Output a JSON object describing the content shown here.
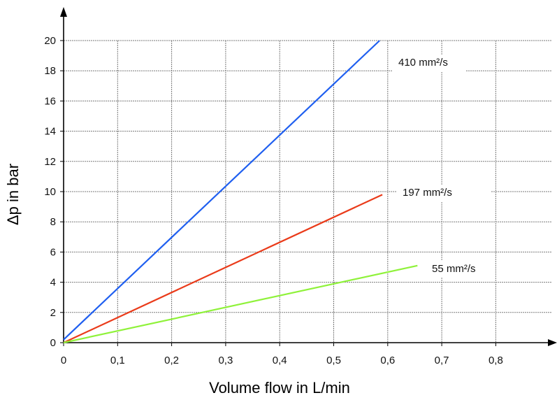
{
  "chart_data": {
    "type": "line",
    "title": "",
    "xlabel": "Volume flow in L/min",
    "ylabel": "Δp in bar",
    "xlim": [
      0,
      0.9
    ],
    "ylim": [
      0,
      20
    ],
    "grid": true,
    "x_ticks": [
      0,
      0.1,
      0.2,
      0.3,
      0.4,
      0.5,
      0.6,
      0.7,
      0.8
    ],
    "x_tick_labels": [
      "0",
      "0,1",
      "0,2",
      "0,3",
      "0,4",
      "0,5",
      "0,6",
      "0,7",
      "0,8"
    ],
    "y_ticks": [
      0,
      2,
      4,
      6,
      8,
      10,
      12,
      14,
      16,
      18,
      20
    ],
    "y_tick_labels": [
      "0",
      "2",
      "4",
      "6",
      "8",
      "10",
      "12",
      "14",
      "16",
      "18",
      "20"
    ],
    "series": [
      {
        "name": "410 mm²/s",
        "color": "#1f5ff0",
        "x": [
          0,
          0.585
        ],
        "y": [
          0.2,
          20
        ]
      },
      {
        "name": "197 mm²/s",
        "color": "#ea3b1a",
        "x": [
          0,
          0.59
        ],
        "y": [
          0,
          9.8
        ]
      },
      {
        "name": "55 mm²/s",
        "color": "#8ff23a",
        "x": [
          0,
          0.655
        ],
        "y": [
          0,
          5.1
        ]
      }
    ]
  }
}
